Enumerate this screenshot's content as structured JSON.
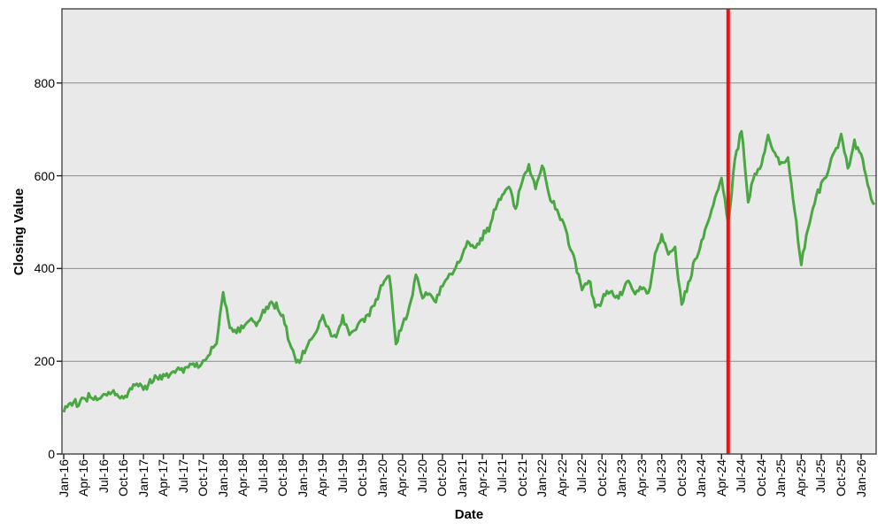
{
  "figure": {
    "background": "#ffffff",
    "plot_background": "#e9e9e9",
    "grid_color": "#8c8c8c",
    "axis_color": "#444444",
    "tick_color": "#222222"
  },
  "chart_data": {
    "type": "line",
    "title": "",
    "xlabel": "Date",
    "ylabel": "Closing Value",
    "grid": "horizontal",
    "legend": "none",
    "ylim": [
      0,
      960
    ],
    "y_ticks": [
      0,
      200,
      400,
      600,
      800
    ],
    "x_tick_every": 3,
    "x": [
      "Jan-16",
      "Feb-16",
      "Mar-16",
      "Apr-16",
      "May-16",
      "Jun-16",
      "Jul-16",
      "Aug-16",
      "Sep-16",
      "Oct-16",
      "Nov-16",
      "Dec-16",
      "Jan-17",
      "Feb-17",
      "Mar-17",
      "Apr-17",
      "May-17",
      "Jun-17",
      "Jul-17",
      "Aug-17",
      "Sep-17",
      "Oct-17",
      "Nov-17",
      "Dec-17",
      "Jan-18",
      "Feb-18",
      "Mar-18",
      "Apr-18",
      "May-18",
      "Jun-18",
      "Jul-18",
      "Aug-18",
      "Sep-18",
      "Oct-18",
      "Nov-18",
      "Dec-18",
      "Jan-19",
      "Feb-19",
      "Mar-19",
      "Apr-19",
      "May-19",
      "Jun-19",
      "Jul-19",
      "Aug-19",
      "Sep-19",
      "Oct-19",
      "Nov-19",
      "Dec-19",
      "Jan-20",
      "Feb-20",
      "Mar-20",
      "Apr-20",
      "May-20",
      "Jun-20",
      "Jul-20",
      "Aug-20",
      "Sep-20",
      "Oct-20",
      "Nov-20",
      "Dec-20",
      "Jan-21",
      "Feb-21",
      "Mar-21",
      "Apr-21",
      "May-21",
      "Jun-21",
      "Jul-21",
      "Aug-21",
      "Sep-21",
      "Oct-21",
      "Nov-21",
      "Dec-21",
      "Jan-22",
      "Feb-22",
      "Mar-22",
      "Apr-22",
      "May-22",
      "Jun-22",
      "Jul-22",
      "Aug-22",
      "Sep-22",
      "Oct-22",
      "Nov-22",
      "Dec-22",
      "Jan-23",
      "Feb-23",
      "Mar-23",
      "Apr-23",
      "May-23",
      "Jun-23",
      "Jul-23",
      "Aug-23",
      "Sep-23",
      "Oct-23",
      "Nov-23",
      "Dec-23",
      "Jan-24",
      "Feb-24",
      "Mar-24",
      "Apr-24",
      "May-24",
      "Jun-24",
      "Jul-24",
      "Aug-24",
      "Sep-24",
      "Oct-24",
      "Nov-24",
      "Dec-24",
      "Jan-25",
      "Feb-25",
      "Mar-25",
      "Apr-25",
      "May-25",
      "Jun-25",
      "Jul-25",
      "Aug-25",
      "Sep-25",
      "Oct-25",
      "Nov-25",
      "Dec-25",
      "Jan-26",
      "Feb-26",
      "Mar-26"
    ],
    "series": [
      {
        "name": "Closing Value",
        "color": "#4aa743",
        "values": [
          100,
          103,
          112,
          118,
          124,
          118,
          128,
          133,
          127,
          123,
          138,
          148,
          142,
          155,
          165,
          172,
          168,
          180,
          178,
          192,
          188,
          200,
          215,
          235,
          355,
          272,
          262,
          275,
          292,
          278,
          302,
          318,
          325,
          298,
          238,
          192,
          212,
          242,
          262,
          296,
          262,
          243,
          298,
          258,
          268,
          288,
          305,
          330,
          368,
          388,
          235,
          285,
          310,
          385,
          335,
          345,
          328,
          365,
          385,
          405,
          430,
          462,
          438,
          472,
          485,
          535,
          555,
          575,
          532,
          592,
          622,
          568,
          625,
          562,
          532,
          505,
          458,
          412,
          362,
          378,
          312,
          332,
          355,
          338,
          352,
          375,
          345,
          362,
          344,
          425,
          465,
          432,
          442,
          315,
          365,
          420,
          452,
          502,
          555,
          592,
          498,
          630,
          705,
          545,
          608,
          622,
          688,
          648,
          625,
          638,
          525,
          405,
          488,
          540,
          582,
          612,
          650,
          685,
          618,
          668,
          650,
          580,
          538
        ]
      }
    ],
    "annotations": [
      {
        "type": "vline",
        "x": "May-24",
        "color": "#ee1111"
      }
    ]
  }
}
